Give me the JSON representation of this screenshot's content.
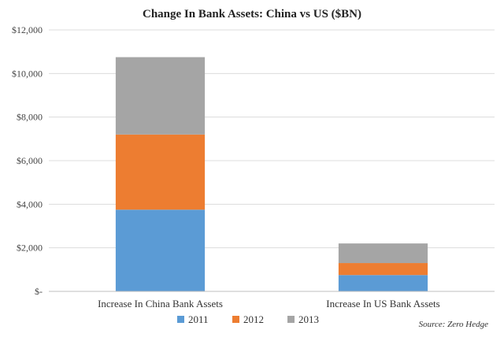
{
  "chart_data": {
    "type": "bar",
    "stacked": true,
    "title": "Change In Bank Assets: China vs US ($BN)",
    "categories": [
      "Increase In China Bank Assets",
      "Increase In US Bank Assets"
    ],
    "series": [
      {
        "name": "2011",
        "values": [
          3750,
          750
        ],
        "color": "#5b9bd5"
      },
      {
        "name": "2012",
        "values": [
          3450,
          550
        ],
        "color": "#ed7d31"
      },
      {
        "name": "2013",
        "values": [
          3550,
          900
        ],
        "color": "#a5a5a5"
      }
    ],
    "yticks": [
      0,
      2000,
      4000,
      6000,
      8000,
      10000,
      12000
    ],
    "ytick_labels": [
      "$-",
      "$2,000",
      "$4,000",
      "$6,000",
      "$8,000",
      "$10,000",
      "$12,000"
    ],
    "ylim": [
      0,
      12000
    ],
    "grid": true,
    "legend_position": "bottom",
    "source": "Source: Zero Hedge"
  }
}
